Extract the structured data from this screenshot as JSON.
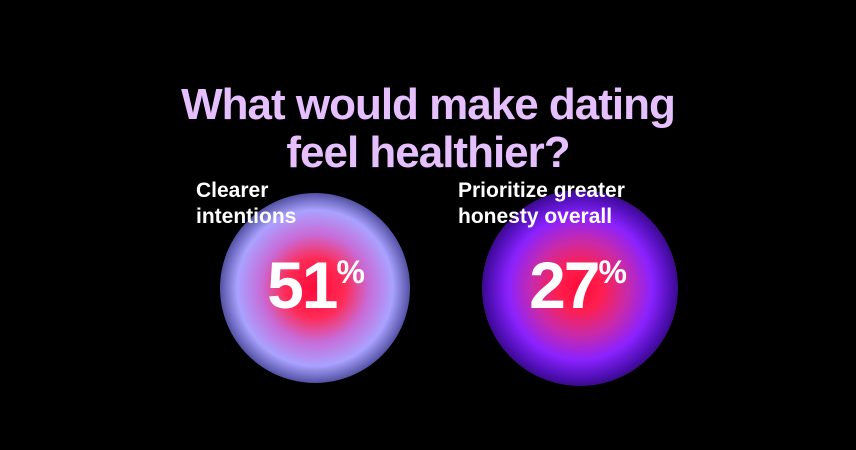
{
  "title": {
    "line1": "What would make dating",
    "line2": "feel healthier?"
  },
  "stats": [
    {
      "label_line1": "Clearer",
      "label_line2": "intentions",
      "value": "51",
      "unit": "%"
    },
    {
      "label_line1": "Prioritize greater",
      "label_line2": "honesty overall",
      "value": "27",
      "unit": "%"
    }
  ],
  "colors": {
    "background": "#000000",
    "title": "#e6bfff",
    "text": "#ffffff",
    "orb_left_core": "#ff0a3a",
    "orb_left_glow": "#a9a2ff",
    "orb_right_core": "#ff0a3a",
    "orb_right_glow": "#8a22ff"
  }
}
